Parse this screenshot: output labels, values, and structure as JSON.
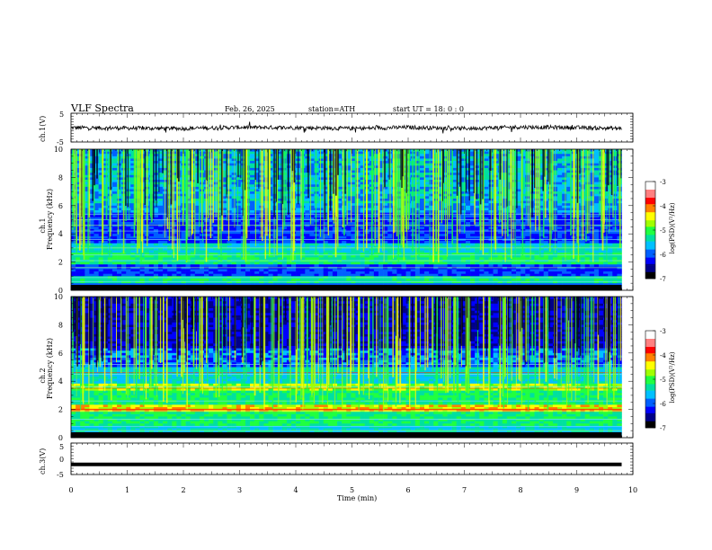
{
  "header": {
    "title": "VLF  Spectra",
    "date": "Feb. 26, 2025",
    "station": "station=ATH",
    "start": "start  UT  =    18: 0   : 0"
  },
  "colors": {
    "colormap": [
      "#000000",
      "#000088",
      "#0000ff",
      "#0060ff",
      "#00c0ff",
      "#00e0a0",
      "#20ff40",
      "#a0ff00",
      "#ffff00",
      "#ff8000",
      "#ff0000",
      "#ff8080",
      "#ffffff"
    ]
  },
  "chart_data": [
    {
      "type": "line",
      "panel": "ch1-waveform",
      "ylabel": "ch.1(V)",
      "ylim": [
        -5,
        5
      ],
      "yticks": [
        "5",
        "-5"
      ],
      "x": [
        0,
        1,
        2,
        3,
        4,
        5,
        6,
        7,
        8,
        9,
        9.8
      ],
      "y": [
        0.0,
        -0.2,
        -0.3,
        0.1,
        0.0,
        -0.3,
        0.1,
        -0.3,
        0.2,
        0.0,
        -0.3
      ],
      "grid": false
    },
    {
      "type": "heatmap",
      "panel": "ch1-spectrogram",
      "title_side": "ch.1",
      "ylabel": "Frequency  (kHz)",
      "ylim": [
        0,
        10
      ],
      "yticks": [
        "0",
        "2",
        "4",
        "6",
        "8",
        "10"
      ],
      "xlim": [
        0,
        10
      ],
      "x_data_max": 9.8,
      "zlim": [
        -7,
        -3
      ],
      "colorbar_label": "log(PSD)(V²/Hz)",
      "colorbar_ticks": [
        "-3",
        "-4",
        "-5",
        "-6",
        "-7"
      ]
    },
    {
      "type": "heatmap",
      "panel": "ch2-spectrogram",
      "title_side": "ch.2",
      "ylabel": "Frequency  (kHz)",
      "ylim": [
        0,
        10
      ],
      "yticks": [
        "0",
        "2",
        "4",
        "6",
        "8",
        "10"
      ],
      "xlim": [
        0,
        10
      ],
      "x_data_max": 9.8,
      "zlim": [
        -7,
        -3
      ],
      "colorbar_label": "log(PSD)(V²/Hz)",
      "colorbar_ticks": [
        "-3",
        "-4",
        "-5",
        "-6",
        "-7"
      ]
    },
    {
      "type": "line",
      "panel": "ch3-waveform",
      "ylabel": "ch.3(V)",
      "ylim": [
        -5,
        5
      ],
      "yticks": [
        "5",
        "0",
        "-5"
      ],
      "x": [
        0,
        9.8
      ],
      "y": [
        -1.8,
        -1.8
      ],
      "xlabel": "Time  (min)",
      "xticks": [
        "0",
        "1",
        "2",
        "3",
        "4",
        "5",
        "6",
        "7",
        "8",
        "9",
        "10"
      ],
      "xlim": [
        0,
        10
      ]
    }
  ]
}
